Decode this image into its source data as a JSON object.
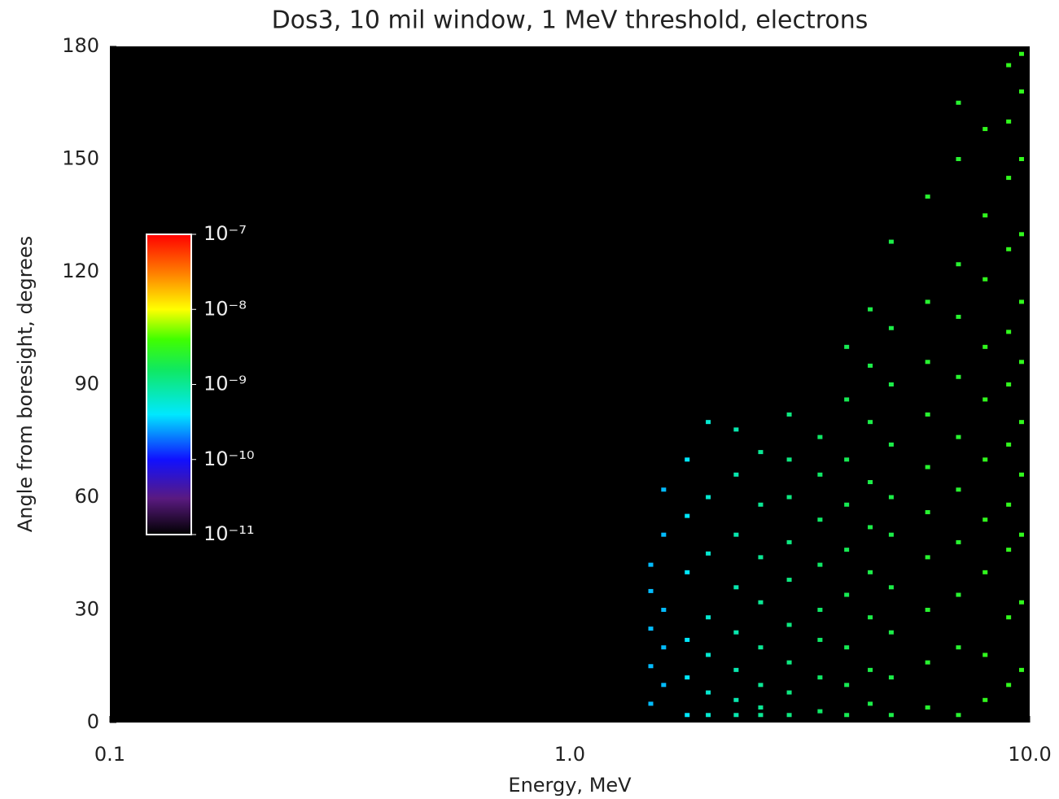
{
  "chart_data": {
    "type": "heatmap",
    "title": "Dos3, 10 mil window, 1 MeV threshold, electrons",
    "xlabel": "Energy, MeV",
    "ylabel": "Angle from boresight, degrees",
    "xscale": "log",
    "xlim": [
      0.1,
      10
    ],
    "xticks": [
      0.1,
      {
        "value": 1,
        "label": "1.0"
      },
      {
        "value": 10,
        "label": "10.0"
      }
    ],
    "ylim": [
      0,
      180
    ],
    "yticks": [
      0,
      30,
      60,
      90,
      120,
      150,
      180
    ],
    "colormap": "rainbow",
    "clim": [
      1e-11,
      1e-07
    ],
    "cticks": [
      {
        "value": 1e-07,
        "label": "10⁻⁷"
      },
      {
        "value": 1e-08,
        "label": "10⁻⁸"
      },
      {
        "value": 1e-09,
        "label": "10⁻⁹"
      },
      {
        "value": 1e-10,
        "label": "10⁻¹⁰"
      },
      {
        "value": 1e-11,
        "label": "10⁻¹¹"
      }
    ],
    "x": [
      1.5,
      1.5,
      1.5,
      1.5,
      1.5,
      1.6,
      1.6,
      1.6,
      1.6,
      1.6,
      1.8,
      1.8,
      1.8,
      1.8,
      1.8,
      1.8,
      2.0,
      2.0,
      2.0,
      2.0,
      2.0,
      2.0,
      2.0,
      2.3,
      2.3,
      2.3,
      2.3,
      2.3,
      2.3,
      2.3,
      2.3,
      2.6,
      2.6,
      2.6,
      2.6,
      2.6,
      2.6,
      2.6,
      2.6,
      3.0,
      3.0,
      3.0,
      3.0,
      3.0,
      3.0,
      3.0,
      3.0,
      3.0,
      3.5,
      3.5,
      3.5,
      3.5,
      3.5,
      3.5,
      3.5,
      3.5,
      4.0,
      4.0,
      4.0,
      4.0,
      4.0,
      4.0,
      4.0,
      4.0,
      4.0,
      4.5,
      4.5,
      4.5,
      4.5,
      4.5,
      4.5,
      4.5,
      4.5,
      4.5,
      5.0,
      5.0,
      5.0,
      5.0,
      5.0,
      5.0,
      5.0,
      5.0,
      5.0,
      5.0,
      6.0,
      6.0,
      6.0,
      6.0,
      6.0,
      6.0,
      6.0,
      6.0,
      6.0,
      6.0,
      7.0,
      7.0,
      7.0,
      7.0,
      7.0,
      7.0,
      7.0,
      7.0,
      7.0,
      7.0,
      7.0,
      8.0,
      8.0,
      8.0,
      8.0,
      8.0,
      8.0,
      8.0,
      8.0,
      8.0,
      8.0,
      9.0,
      9.0,
      9.0,
      9.0,
      9.0,
      9.0,
      9.0,
      9.0,
      9.0,
      9.0,
      9.0,
      9.6,
      9.6,
      9.6,
      9.6,
      9.6,
      9.6,
      9.6,
      9.6,
      9.6,
      9.6,
      9.6
    ],
    "y": [
      5,
      15,
      25,
      35,
      42,
      10,
      20,
      30,
      50,
      62,
      2,
      12,
      22,
      40,
      55,
      70,
      2,
      8,
      18,
      28,
      45,
      60,
      80,
      2,
      6,
      14,
      24,
      36,
      50,
      66,
      78,
      2,
      4,
      10,
      20,
      32,
      44,
      58,
      72,
      2,
      8,
      16,
      26,
      38,
      48,
      60,
      70,
      82,
      3,
      12,
      22,
      30,
      42,
      54,
      66,
      76,
      2,
      10,
      20,
      34,
      46,
      58,
      70,
      86,
      100,
      5,
      14,
      28,
      40,
      52,
      64,
      80,
      95,
      110,
      2,
      12,
      24,
      36,
      50,
      60,
      74,
      90,
      105,
      128,
      4,
      16,
      30,
      44,
      56,
      68,
      82,
      96,
      112,
      140,
      2,
      20,
      34,
      48,
      62,
      76,
      92,
      108,
      122,
      150,
      165,
      6,
      18,
      40,
      54,
      70,
      86,
      100,
      118,
      135,
      158,
      10,
      28,
      46,
      58,
      74,
      90,
      104,
      126,
      145,
      160,
      175,
      14,
      32,
      50,
      66,
      80,
      96,
      112,
      130,
      150,
      168,
      178
    ],
    "values": [
      3e-10,
      3e-10,
      3e-10,
      3e-10,
      3e-10,
      3e-10,
      3e-10,
      3e-10,
      3e-10,
      3e-10,
      4e-10,
      4e-10,
      4e-10,
      4e-10,
      4e-10,
      4e-10,
      6e-10,
      6e-10,
      6e-10,
      6e-10,
      6e-10,
      6e-10,
      6e-10,
      8e-10,
      8e-10,
      8e-10,
      8e-10,
      8e-10,
      8e-10,
      8e-10,
      8e-10,
      1e-09,
      1e-09,
      1e-09,
      1e-09,
      1e-09,
      1e-09,
      1e-09,
      1e-09,
      1.2e-09,
      1.2e-09,
      1.2e-09,
      1.2e-09,
      1.2e-09,
      1.2e-09,
      1.2e-09,
      1.2e-09,
      1.2e-09,
      1.5e-09,
      1.5e-09,
      1.5e-09,
      1.5e-09,
      1.5e-09,
      1.5e-09,
      1.5e-09,
      1.5e-09,
      1.8e-09,
      1.8e-09,
      1.8e-09,
      1.8e-09,
      1.8e-09,
      1.8e-09,
      1.8e-09,
      1.8e-09,
      1.8e-09,
      2e-09,
      2e-09,
      2e-09,
      2e-09,
      2e-09,
      2e-09,
      2e-09,
      2e-09,
      2e-09,
      2e-09,
      2e-09,
      2e-09,
      2e-09,
      2e-09,
      2e-09,
      2e-09,
      2e-09,
      2e-09,
      2e-09,
      2.5e-09,
      2.5e-09,
      2.5e-09,
      2.5e-09,
      2.5e-09,
      2.5e-09,
      2.5e-09,
      2.5e-09,
      2.5e-09,
      2.5e-09,
      2.5e-09,
      2.5e-09,
      2.5e-09,
      2.5e-09,
      2.5e-09,
      2.5e-09,
      2.5e-09,
      2.5e-09,
      2.5e-09,
      2.5e-09,
      2.5e-09,
      3e-09,
      3e-09,
      3e-09,
      3e-09,
      3e-09,
      3e-09,
      3e-09,
      3e-09,
      3e-09,
      3e-09,
      3e-09,
      3e-09,
      3e-09,
      3e-09,
      3e-09,
      3e-09,
      3e-09,
      3e-09,
      3e-09,
      3e-09,
      3e-09,
      3e-09,
      3e-09,
      3e-09,
      3e-09,
      3e-09,
      3e-09,
      3e-09,
      3e-09,
      3e-09,
      3e-09,
      3e-09
    ]
  }
}
